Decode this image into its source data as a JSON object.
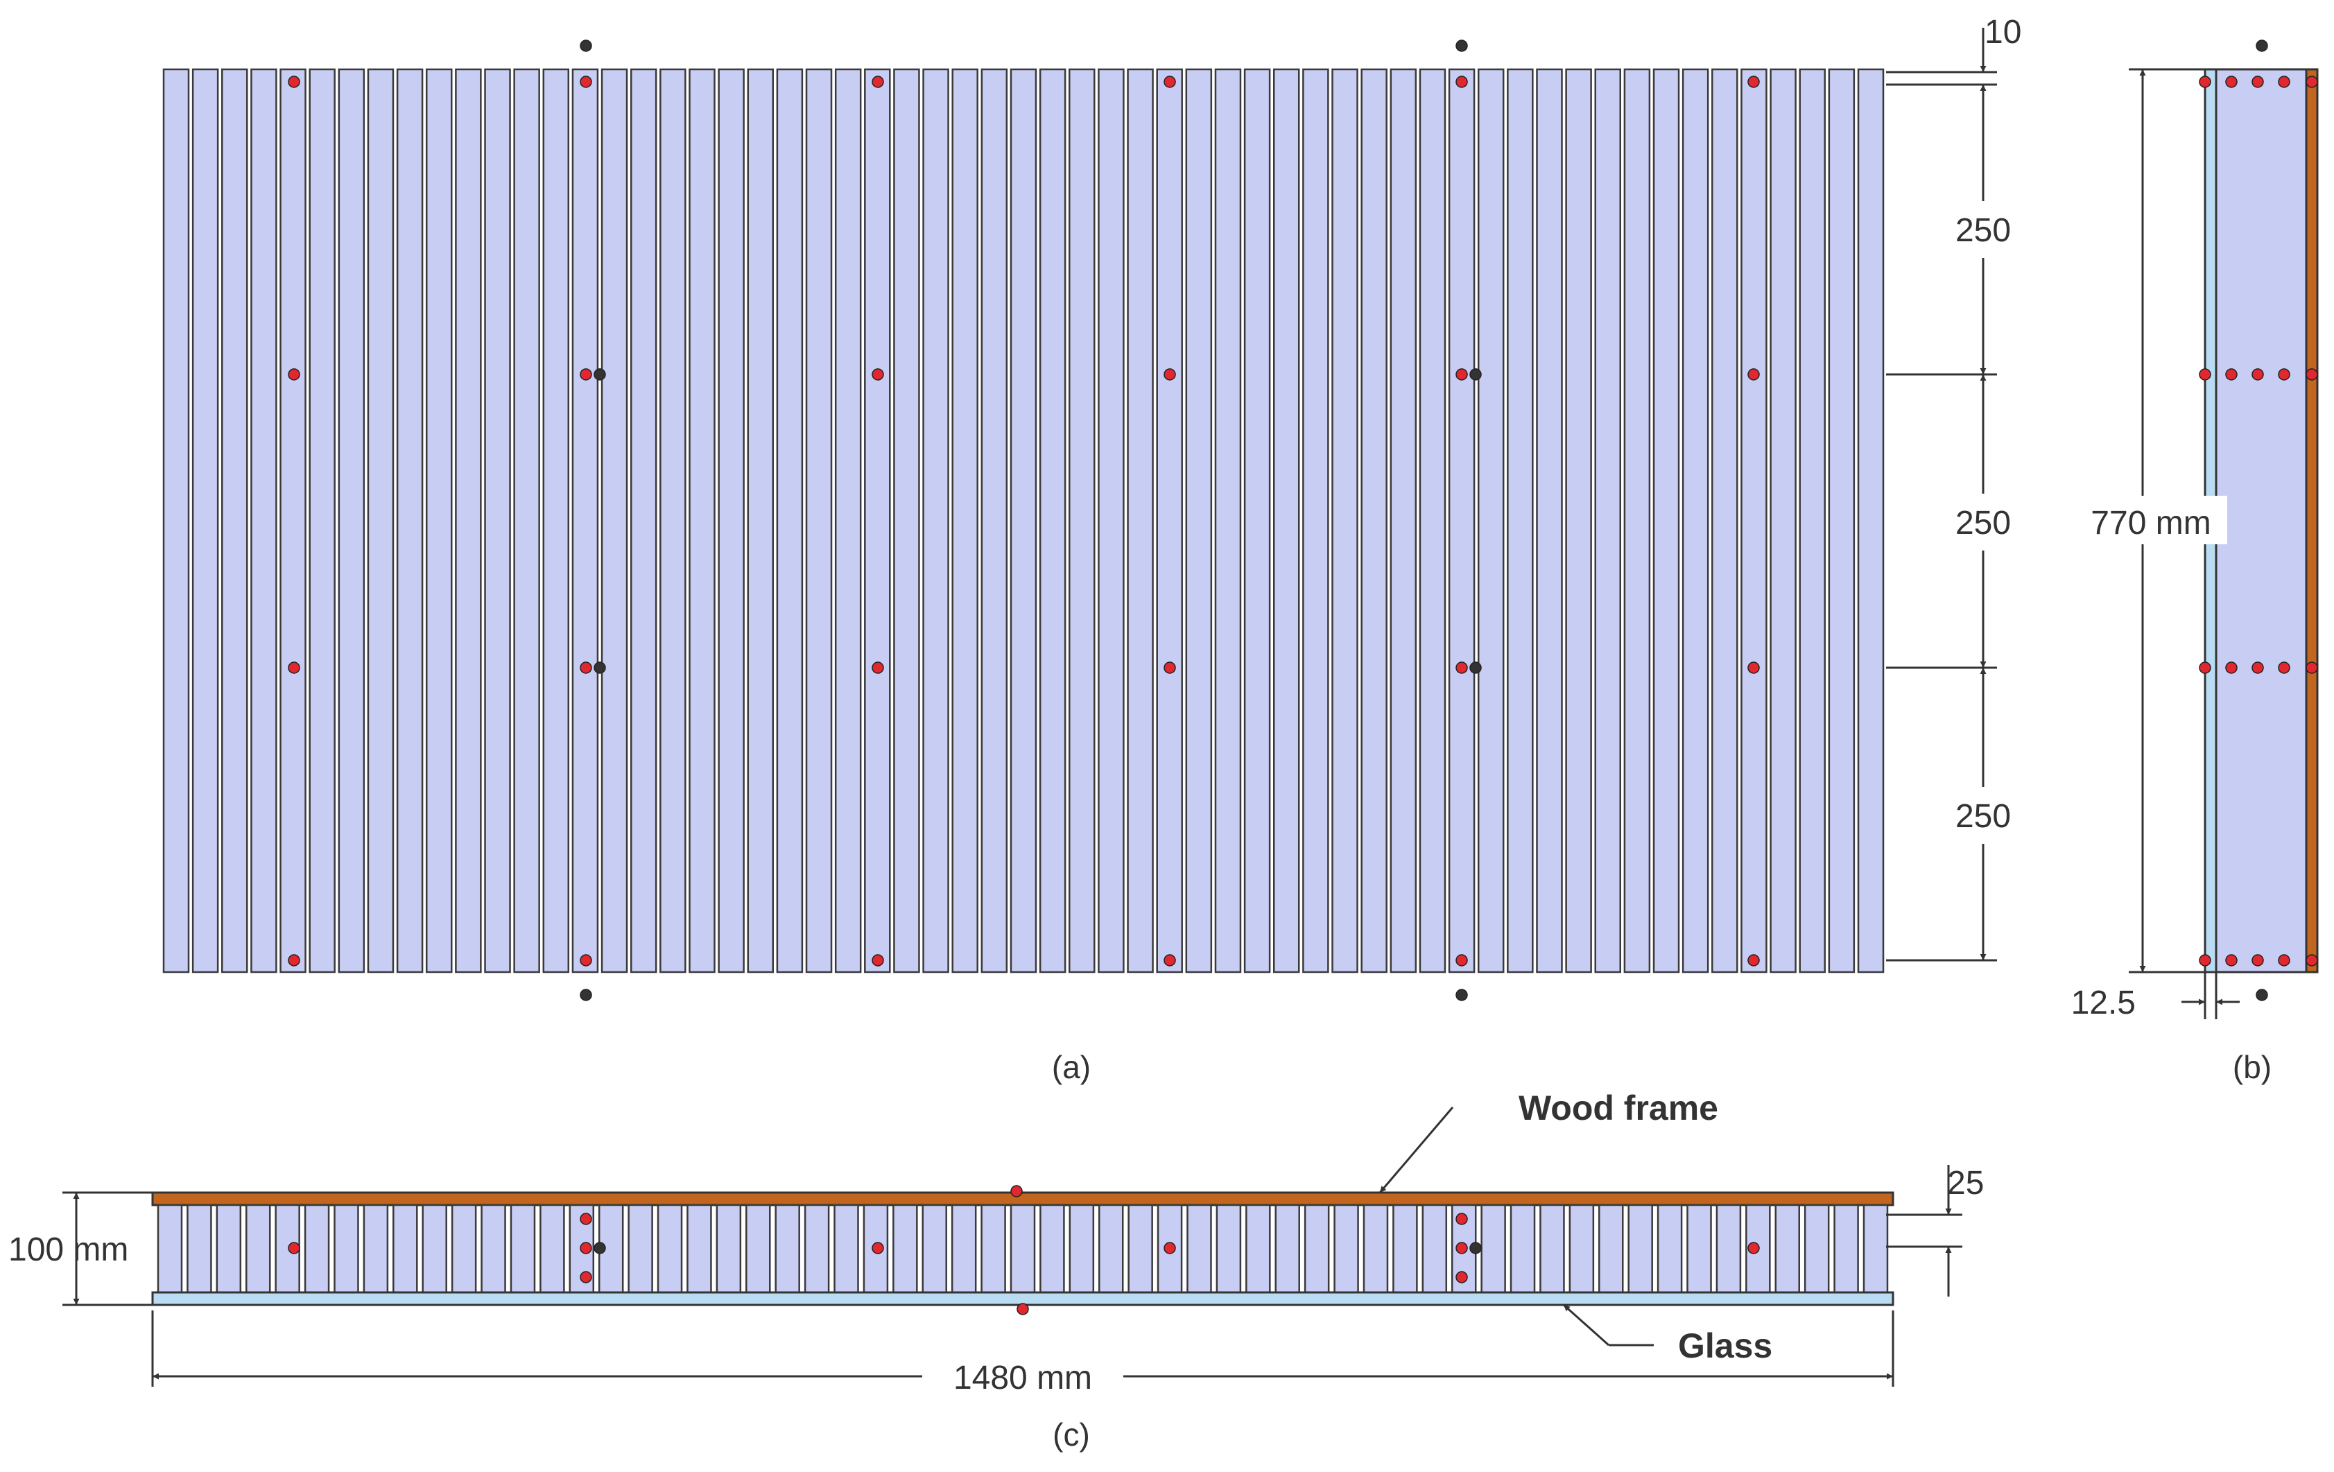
{
  "colors": {
    "fin_fill": "#c8cdf4",
    "fin_stroke": "#3a3a3a",
    "wood": "#c2651f",
    "glass": "#b9dcf2",
    "sensor_red": "#e0282e",
    "sensor_black": "#333333",
    "line": "#333333"
  },
  "view_a": {
    "caption": "(a)",
    "dimensions": {
      "top_offset": "10",
      "spacing_1": "250",
      "spacing_2": "250",
      "spacing_3": "250"
    }
  },
  "view_b": {
    "caption": "(b)",
    "dimensions": {
      "height": "770  mm",
      "thickness": "12.5"
    }
  },
  "view_c": {
    "caption": "(c)",
    "labels": {
      "wood_frame": "Wood frame",
      "glass": "Glass"
    },
    "dimensions": {
      "depth": "100 mm",
      "width": "1480  mm",
      "fin_gap": "25"
    }
  }
}
